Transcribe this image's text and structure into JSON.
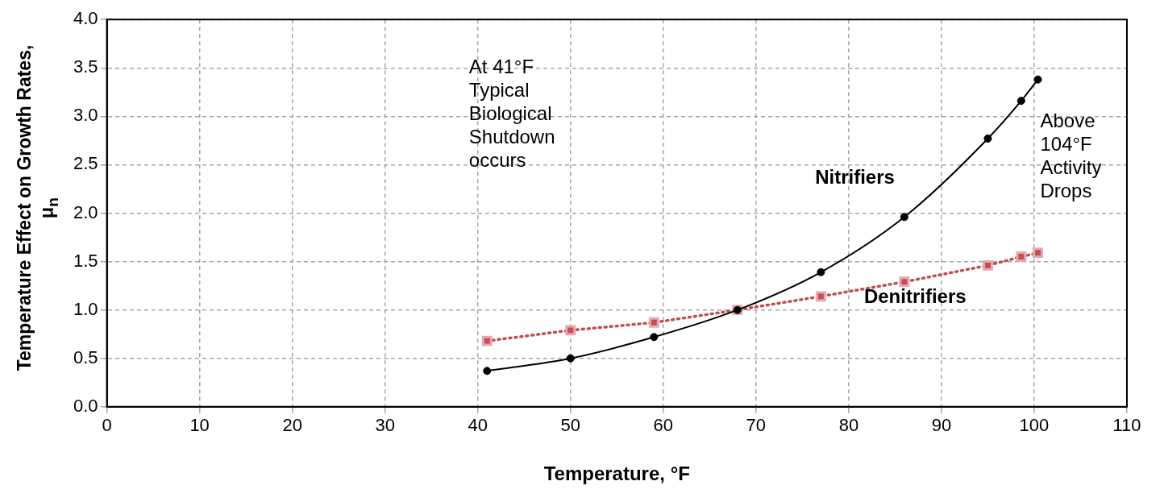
{
  "chart_data": {
    "type": "line",
    "xlabel": "Temperature, °F",
    "ylabel": "Temperature Effect on Growth Rates, μ$_{n}$",
    "x": [
      41,
      50,
      59,
      68,
      77,
      86,
      95,
      98.6,
      100.4
    ],
    "series": [
      {
        "name": "Nitrifiers",
        "color": "#000000",
        "marker": "circle",
        "line_style": "solid",
        "values": [
          0.37,
          0.5,
          0.72,
          1.0,
          1.39,
          1.96,
          2.77,
          3.16,
          3.38
        ]
      },
      {
        "name": "Denitrifiers",
        "color": "#c0504d",
        "marker": "square",
        "line_style": "dotted",
        "values": [
          0.68,
          0.79,
          0.87,
          1.0,
          1.14,
          1.29,
          1.46,
          1.55,
          1.59
        ]
      }
    ],
    "xlim": [
      0,
      110
    ],
    "xticks": [
      0,
      10,
      20,
      30,
      40,
      50,
      60,
      70,
      80,
      90,
      100,
      110
    ],
    "ylim": [
      0,
      4
    ],
    "yticks": [
      {
        "value": 0,
        "label": "0.0"
      },
      {
        "value": 0.5,
        "label": "0.5"
      },
      {
        "value": 1,
        "label": "1.0"
      },
      {
        "value": 1.5,
        "label": "1.5"
      },
      {
        "value": 2,
        "label": "2.0"
      },
      {
        "value": 2.5,
        "label": "2.5"
      },
      {
        "value": 3,
        "label": "3.0"
      },
      {
        "value": 3.5,
        "label": "3.5"
      },
      {
        "value": 4,
        "label": "4.0"
      }
    ],
    "grid": true,
    "legend": false,
    "annotations": [
      "At 41°F\nTypical\nBiological\nShutdown\noccurs",
      "Above\n104°F\nActivity\nDrops"
    ]
  }
}
